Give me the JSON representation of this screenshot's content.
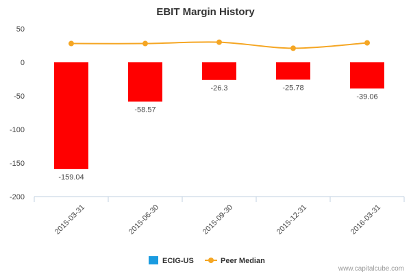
{
  "chart_data": {
    "type": "bar",
    "title": "EBIT Margin History",
    "categories": [
      "2015-03-31",
      "2015-06-30",
      "2015-09-30",
      "2015-12-31",
      "2016-03-31"
    ],
    "series": [
      {
        "name": "ECIG-US",
        "type": "bar",
        "values": [
          -159.04,
          -58.57,
          -26.3,
          -25.78,
          -39.06
        ],
        "data_labels": [
          "-159.04",
          "-58.57",
          "-26.3",
          "-25.78",
          "-39.06"
        ]
      },
      {
        "name": "Peer Median",
        "type": "line",
        "values": [
          28,
          28,
          30,
          21,
          29
        ]
      }
    ],
    "ylim": [
      -200,
      50
    ],
    "yticks": [
      "50",
      "0",
      "-50",
      "-100",
      "-150",
      "-200"
    ],
    "ytick_values": [
      50,
      0,
      -50,
      -100,
      -150,
      -200
    ],
    "legend_position": "bottom-center",
    "grid": false
  },
  "colors": {
    "bar_fill": "#ff0000",
    "legend_ecig": "#1a9be0",
    "line": "#f5a623",
    "axis": "#c0d0e0"
  },
  "credit": "www.capitalcube.com"
}
